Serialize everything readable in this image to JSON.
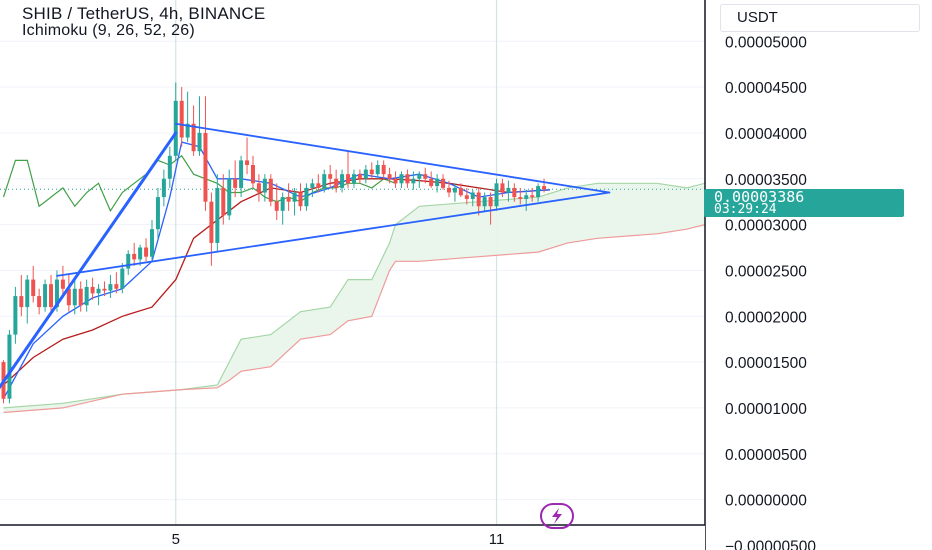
{
  "header": {
    "title": "SHIB / TetherUS, 4h, BINANCE",
    "indicator": "Ichimoku (9, 26, 52, 26)"
  },
  "axis": {
    "currency": "USDT",
    "last_price": "0.00003386",
    "countdown": "03:29:24"
  },
  "colors": {
    "up": "#26a69a",
    "down": "#ef5350",
    "trendline": "#2962ff",
    "conversion": "#2962ff",
    "base": "#b71c1c",
    "lagging": "#43a047",
    "span_a": "#a5d6a7",
    "span_b": "#ef9a9a",
    "cloud": "#e8f5e9",
    "grid": "#f0f3fa"
  },
  "chart_data": {
    "type": "candlestick",
    "symbol": "SHIB / TetherUS",
    "timeframe": "4h",
    "exchange": "BINANCE",
    "x_tick_labels": [
      {
        "label": "5",
        "bar": 29
      },
      {
        "label": "11",
        "bar": 83
      }
    ],
    "y_tick_labels": [
      "0.00005000",
      "0.00004500",
      "0.00004000",
      "0.00003500",
      "0.00003000",
      "0.00002500",
      "0.00002000",
      "0.00001500",
      "0.00001000",
      "0.00000500",
      "0.00000000",
      "−0.00000500"
    ],
    "y_ticks": [
      5e-05,
      4.5e-05,
      4e-05,
      3.5e-05,
      3e-05,
      2.5e-05,
      2e-05,
      1.5e-05,
      1e-05,
      5e-06,
      0,
      -5e-06
    ],
    "ylim": [
      -5.5e-06,
      5.45e-05
    ],
    "last_price": 3.386e-05,
    "candles": [
      [
        1.5,
        1.52,
        1.05,
        1.1
      ],
      [
        1.1,
        1.85,
        1.05,
        1.8
      ],
      [
        1.8,
        2.32,
        1.7,
        2.22
      ],
      [
        2.22,
        2.45,
        2.0,
        2.1
      ],
      [
        2.1,
        2.45,
        1.92,
        2.4
      ],
      [
        2.4,
        2.55,
        2.15,
        2.22
      ],
      [
        2.22,
        2.3,
        2.02,
        2.1
      ],
      [
        2.1,
        2.4,
        2.05,
        2.35
      ],
      [
        2.35,
        2.45,
        2.05,
        2.1
      ],
      [
        2.1,
        2.5,
        2.05,
        2.4
      ],
      [
        2.4,
        2.55,
        2.2,
        2.3
      ],
      [
        2.3,
        2.45,
        2.05,
        2.12
      ],
      [
        2.12,
        2.4,
        2.02,
        2.3
      ],
      [
        2.3,
        2.38,
        2.05,
        2.12
      ],
      [
        2.12,
        2.4,
        2.05,
        2.32
      ],
      [
        2.32,
        2.42,
        2.18,
        2.25
      ],
      [
        2.25,
        2.35,
        2.12,
        2.3
      ],
      [
        2.3,
        2.38,
        2.22,
        2.28
      ],
      [
        2.28,
        2.45,
        2.2,
        2.35
      ],
      [
        2.35,
        2.48,
        2.25,
        2.3
      ],
      [
        2.3,
        2.58,
        2.25,
        2.52
      ],
      [
        2.52,
        2.72,
        2.45,
        2.68
      ],
      [
        2.68,
        2.8,
        2.55,
        2.62
      ],
      [
        2.62,
        2.78,
        2.55,
        2.75
      ],
      [
        2.75,
        2.85,
        2.6,
        2.65
      ],
      [
        2.65,
        3.05,
        2.6,
        2.95
      ],
      [
        2.95,
        3.4,
        2.85,
        3.3
      ],
      [
        3.3,
        3.6,
        3.2,
        3.5
      ],
      [
        3.5,
        3.85,
        3.4,
        3.75
      ],
      [
        3.75,
        4.55,
        3.7,
        4.35
      ],
      [
        4.35,
        4.5,
        3.85,
        3.95
      ],
      [
        3.95,
        4.45,
        3.9,
        4.1
      ],
      [
        4.1,
        4.3,
        3.75,
        3.8
      ],
      [
        3.8,
        4.4,
        3.75,
        4.0
      ],
      [
        4.0,
        4.4,
        3.15,
        3.25
      ],
      [
        3.25,
        3.35,
        2.55,
        2.8
      ],
      [
        2.8,
        3.55,
        2.7,
        3.4
      ],
      [
        3.4,
        3.55,
        3.0,
        3.1
      ],
      [
        3.1,
        3.6,
        3.05,
        3.5
      ],
      [
        3.5,
        3.7,
        3.3,
        3.4
      ],
      [
        3.4,
        3.75,
        3.3,
        3.7
      ],
      [
        3.7,
        3.95,
        3.55,
        3.65
      ],
      [
        3.65,
        3.75,
        3.4,
        3.45
      ],
      [
        3.45,
        3.55,
        3.25,
        3.35
      ],
      [
        3.35,
        3.55,
        3.25,
        3.5
      ],
      [
        3.5,
        3.55,
        3.2,
        3.25
      ],
      [
        3.25,
        3.45,
        3.05,
        3.15
      ],
      [
        3.15,
        3.35,
        3.0,
        3.3
      ],
      [
        3.3,
        3.45,
        3.15,
        3.25
      ],
      [
        3.25,
        3.4,
        3.1,
        3.35
      ],
      [
        3.35,
        3.45,
        3.15,
        3.2
      ],
      [
        3.2,
        3.45,
        3.15,
        3.4
      ],
      [
        3.4,
        3.5,
        3.3,
        3.45
      ],
      [
        3.45,
        3.55,
        3.35,
        3.4
      ],
      [
        3.4,
        3.6,
        3.35,
        3.55
      ],
      [
        3.55,
        3.65,
        3.4,
        3.5
      ],
      [
        3.5,
        3.6,
        3.35,
        3.4
      ],
      [
        3.4,
        3.6,
        3.35,
        3.55
      ],
      [
        3.55,
        3.8,
        3.4,
        3.45
      ],
      [
        3.45,
        3.6,
        3.4,
        3.55
      ],
      [
        3.55,
        3.6,
        3.45,
        3.5
      ],
      [
        3.5,
        3.65,
        3.45,
        3.6
      ],
      [
        3.6,
        3.68,
        3.5,
        3.55
      ],
      [
        3.55,
        3.7,
        3.5,
        3.65
      ],
      [
        3.65,
        3.7,
        3.5,
        3.55
      ],
      [
        3.55,
        3.62,
        3.45,
        3.5
      ],
      [
        3.5,
        3.58,
        3.4,
        3.45
      ],
      [
        3.45,
        3.58,
        3.4,
        3.55
      ],
      [
        3.55,
        3.6,
        3.4,
        3.45
      ],
      [
        3.45,
        3.58,
        3.38,
        3.5
      ],
      [
        3.5,
        3.58,
        3.4,
        3.55
      ],
      [
        3.55,
        3.62,
        3.45,
        3.5
      ],
      [
        3.5,
        3.58,
        3.4,
        3.42
      ],
      [
        3.42,
        3.55,
        3.35,
        3.5
      ],
      [
        3.5,
        3.55,
        3.38,
        3.4
      ],
      [
        3.4,
        3.48,
        3.3,
        3.35
      ],
      [
        3.35,
        3.45,
        3.25,
        3.4
      ],
      [
        3.4,
        3.45,
        3.3,
        3.32
      ],
      [
        3.32,
        3.4,
        3.22,
        3.28
      ],
      [
        3.28,
        3.38,
        3.2,
        3.35
      ],
      [
        3.35,
        3.4,
        3.1,
        3.2
      ],
      [
        3.2,
        3.35,
        3.15,
        3.3
      ],
      [
        3.3,
        3.35,
        3.0,
        3.2
      ],
      [
        3.2,
        3.5,
        3.15,
        3.45
      ],
      [
        3.45,
        3.5,
        3.3,
        3.35
      ],
      [
        3.35,
        3.48,
        3.25,
        3.4
      ],
      [
        3.4,
        3.45,
        3.25,
        3.3
      ],
      [
        3.3,
        3.4,
        3.22,
        3.28
      ],
      [
        3.28,
        3.38,
        3.15,
        3.32
      ],
      [
        3.32,
        3.4,
        3.25,
        3.3
      ],
      [
        3.3,
        3.45,
        3.25,
        3.42
      ],
      [
        3.42,
        3.5,
        3.35,
        3.386
      ]
    ],
    "trendlines": [
      {
        "from": [
          -2,
          1.1e-05
        ],
        "to": [
          29,
          4e-05
        ]
      },
      {
        "from": [
          9,
          2.44e-05
        ],
        "to": [
          102,
          3.35e-05
        ]
      },
      {
        "from": [
          29,
          4.1e-05
        ],
        "to": [
          102,
          3.35e-05
        ]
      }
    ],
    "conversion_line": [
      [
        0,
        1.1
      ],
      [
        5,
        1.7
      ],
      [
        10,
        2.0
      ],
      [
        15,
        2.2
      ],
      [
        20,
        2.3
      ],
      [
        25,
        2.6
      ],
      [
        28,
        3.3
      ],
      [
        30,
        3.9
      ],
      [
        33,
        3.85
      ],
      [
        36,
        3.5
      ],
      [
        40,
        3.5
      ],
      [
        45,
        3.45
      ],
      [
        50,
        3.3
      ],
      [
        55,
        3.4
      ],
      [
        60,
        3.55
      ],
      [
        65,
        3.5
      ],
      [
        70,
        3.55
      ],
      [
        75,
        3.45
      ],
      [
        80,
        3.3
      ],
      [
        85,
        3.35
      ],
      [
        92,
        3.38
      ]
    ],
    "base_line": [
      [
        0,
        1.25
      ],
      [
        5,
        1.55
      ],
      [
        10,
        1.75
      ],
      [
        15,
        1.85
      ],
      [
        20,
        2.0
      ],
      [
        25,
        2.1
      ],
      [
        29,
        2.4
      ],
      [
        32,
        2.85
      ],
      [
        36,
        3.05
      ],
      [
        40,
        3.25
      ],
      [
        45,
        3.4
      ],
      [
        50,
        3.35
      ],
      [
        55,
        3.45
      ],
      [
        60,
        3.5
      ],
      [
        65,
        3.5
      ],
      [
        70,
        3.48
      ],
      [
        75,
        3.45
      ],
      [
        80,
        3.4
      ],
      [
        85,
        3.35
      ],
      [
        92,
        3.38
      ]
    ],
    "lagging_span": [
      [
        0,
        3.3
      ],
      [
        2,
        3.7
      ],
      [
        4,
        3.7
      ],
      [
        6,
        3.2
      ],
      [
        8,
        3.3
      ],
      [
        10,
        3.4
      ],
      [
        12,
        3.2
      ],
      [
        14,
        3.35
      ],
      [
        16,
        3.45
      ],
      [
        18,
        3.15
      ],
      [
        20,
        3.35
      ],
      [
        22,
        3.45
      ],
      [
        24,
        3.55
      ],
      [
        26,
        3.7
      ],
      [
        28,
        3.65
      ],
      [
        30,
        3.75
      ],
      [
        32,
        3.55
      ],
      [
        34,
        3.5
      ],
      [
        36,
        3.45
      ],
      [
        38,
        3.35
      ],
      [
        40,
        3.35
      ],
      [
        42,
        3.4
      ],
      [
        44,
        3.3
      ],
      [
        46,
        3.25
      ],
      [
        48,
        3.3
      ],
      [
        50,
        3.25
      ],
      [
        52,
        3.35
      ],
      [
        54,
        3.4
      ],
      [
        56,
        3.4
      ],
      [
        58,
        3.45
      ],
      [
        60,
        3.45
      ],
      [
        62,
        3.4
      ],
      [
        64,
        3.5
      ],
      [
        66,
        3.45
      ]
    ],
    "leading_span_a": [
      [
        0,
        1.0
      ],
      [
        10,
        1.05
      ],
      [
        20,
        1.15
      ],
      [
        30,
        1.2
      ],
      [
        36,
        1.25
      ],
      [
        38,
        1.5
      ],
      [
        40,
        1.75
      ],
      [
        45,
        1.8
      ],
      [
        50,
        2.05
      ],
      [
        55,
        2.1
      ],
      [
        58,
        2.4
      ],
      [
        62,
        2.4
      ],
      [
        65,
        2.8
      ],
      [
        66,
        3.0
      ],
      [
        70,
        3.2
      ],
      [
        80,
        3.25
      ],
      [
        90,
        3.3
      ],
      [
        95,
        3.4
      ],
      [
        100,
        3.45
      ],
      [
        110,
        3.45
      ],
      [
        115,
        3.4
      ],
      [
        120,
        3.45
      ]
    ],
    "leading_span_b": [
      [
        0,
        0.95
      ],
      [
        10,
        1.0
      ],
      [
        20,
        1.15
      ],
      [
        30,
        1.2
      ],
      [
        36,
        1.22
      ],
      [
        38,
        1.3
      ],
      [
        40,
        1.4
      ],
      [
        45,
        1.45
      ],
      [
        50,
        1.75
      ],
      [
        55,
        1.8
      ],
      [
        58,
        1.95
      ],
      [
        62,
        2.0
      ],
      [
        65,
        2.5
      ],
      [
        66,
        2.6
      ],
      [
        70,
        2.6
      ],
      [
        80,
        2.65
      ],
      [
        90,
        2.7
      ],
      [
        95,
        2.8
      ],
      [
        100,
        2.85
      ],
      [
        110,
        2.9
      ],
      [
        115,
        2.95
      ],
      [
        120,
        3.0
      ]
    ]
  }
}
